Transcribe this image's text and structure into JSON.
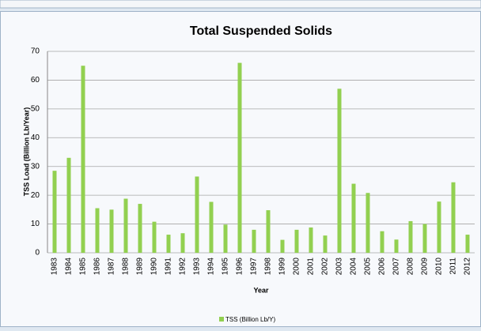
{
  "chart_data": {
    "type": "bar",
    "title": "Total Suspended Solids",
    "x_label": "Year",
    "y_label": "TSS Load (Billion Lb/Year)",
    "categories": [
      "1983",
      "1984",
      "1985",
      "1986",
      "1987",
      "1988",
      "1989",
      "1990",
      "1991",
      "1992",
      "1993",
      "1994",
      "1995",
      "1996",
      "1997",
      "1998",
      "1999",
      "2000",
      "2001",
      "2002",
      "2003",
      "2004",
      "2005",
      "2006",
      "2007",
      "2008",
      "2009",
      "2010",
      "2011",
      "2012"
    ],
    "series": [
      {
        "name": "TSS (Billion Lb/Y)",
        "color": "#92d050",
        "values": [
          28.5,
          33,
          65,
          15.5,
          15,
          18.8,
          17,
          10.8,
          6.3,
          6.8,
          26.5,
          17.7,
          9.8,
          66,
          8,
          14.8,
          4.5,
          8,
          8.8,
          6,
          57,
          24,
          20.8,
          7.5,
          4.6,
          11,
          10,
          17.8,
          24.5,
          6.3
        ]
      }
    ],
    "ylim": [
      0,
      70
    ],
    "yticks": [
      0,
      10,
      20,
      30,
      40,
      50,
      60,
      70
    ],
    "grid": true,
    "legend": "bottom"
  }
}
